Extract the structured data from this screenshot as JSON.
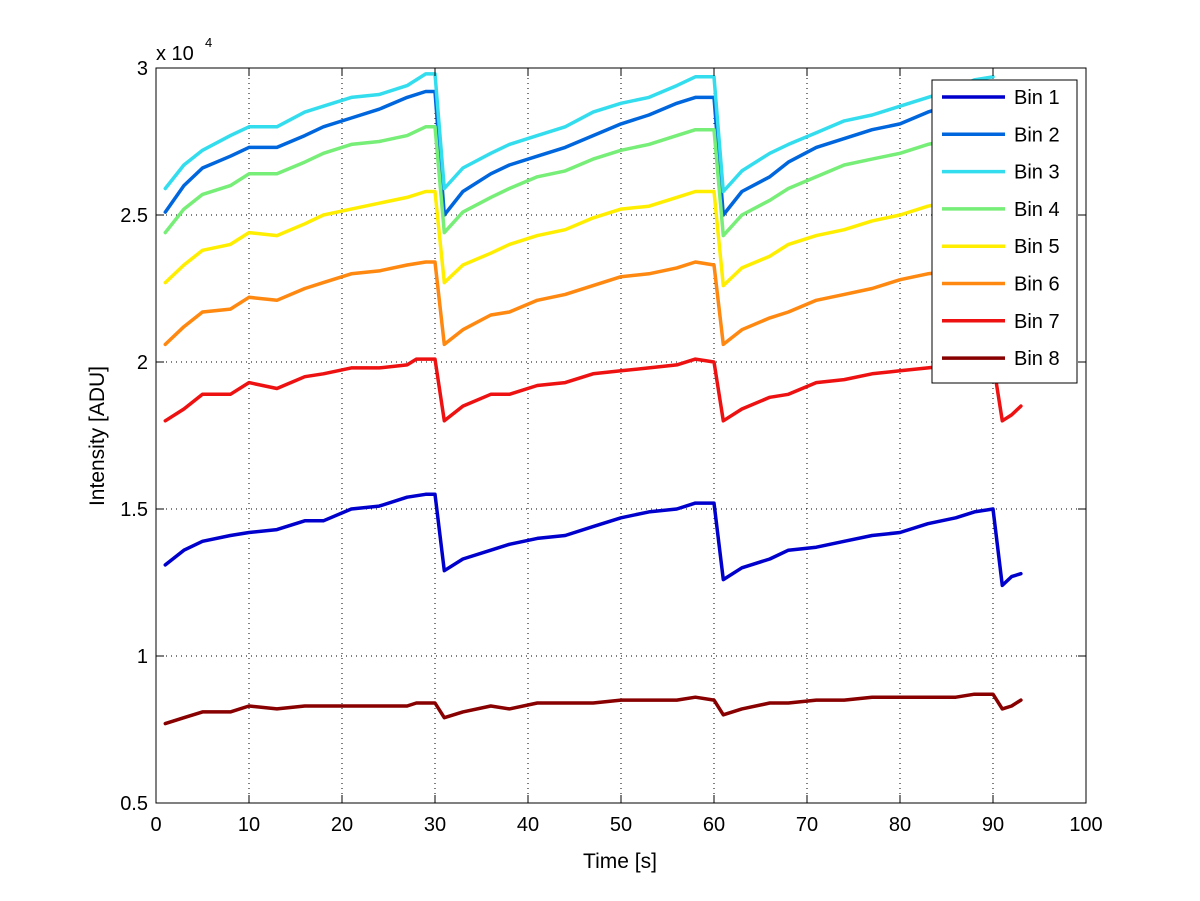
{
  "chart_data": {
    "type": "line",
    "xlabel": "Time [s]",
    "ylabel": "Intensity [ADU]",
    "y_multiplier": {
      "base": "x 10",
      "exponent": "4"
    },
    "xlim": [
      0,
      100
    ],
    "ylim": [
      0.5,
      3
    ],
    "xticks": [
      0,
      10,
      20,
      30,
      40,
      50,
      60,
      70,
      80,
      90,
      100
    ],
    "yticks": [
      0.5,
      1,
      1.5,
      2,
      2.5,
      3
    ],
    "xtick_labels": [
      "0",
      "10",
      "20",
      "30",
      "40",
      "50",
      "60",
      "70",
      "80",
      "90",
      "100"
    ],
    "ytick_labels": [
      "0.5",
      "1",
      "1.5",
      "2",
      "2.5",
      "3"
    ],
    "grid": true,
    "legend_position": "top-right",
    "series": [
      {
        "name": "Bin 1",
        "color": "#0000CC",
        "points": [
          [
            1,
            1.31
          ],
          [
            3,
            1.36
          ],
          [
            5,
            1.39
          ],
          [
            8,
            1.41
          ],
          [
            10,
            1.42
          ],
          [
            13,
            1.43
          ],
          [
            16,
            1.46
          ],
          [
            18,
            1.46
          ],
          [
            21,
            1.5
          ],
          [
            24,
            1.51
          ],
          [
            27,
            1.54
          ],
          [
            29,
            1.55
          ],
          [
            30,
            1.55
          ],
          [
            31,
            1.29
          ],
          [
            33,
            1.33
          ],
          [
            36,
            1.36
          ],
          [
            38,
            1.38
          ],
          [
            41,
            1.4
          ],
          [
            44,
            1.41
          ],
          [
            47,
            1.44
          ],
          [
            50,
            1.47
          ],
          [
            53,
            1.49
          ],
          [
            56,
            1.5
          ],
          [
            58,
            1.52
          ],
          [
            60,
            1.52
          ],
          [
            61,
            1.26
          ],
          [
            63,
            1.3
          ],
          [
            66,
            1.33
          ],
          [
            68,
            1.36
          ],
          [
            71,
            1.37
          ],
          [
            74,
            1.39
          ],
          [
            77,
            1.41
          ],
          [
            80,
            1.42
          ],
          [
            83,
            1.45
          ],
          [
            86,
            1.47
          ],
          [
            88,
            1.49
          ],
          [
            90,
            1.5
          ],
          [
            91,
            1.24
          ],
          [
            92,
            1.27
          ],
          [
            93,
            1.28
          ]
        ]
      },
      {
        "name": "Bin 2",
        "color": "#0066DD",
        "points": [
          [
            1,
            2.51
          ],
          [
            3,
            2.6
          ],
          [
            5,
            2.66
          ],
          [
            8,
            2.7
          ],
          [
            10,
            2.73
          ],
          [
            13,
            2.73
          ],
          [
            16,
            2.77
          ],
          [
            18,
            2.8
          ],
          [
            21,
            2.83
          ],
          [
            24,
            2.86
          ],
          [
            27,
            2.9
          ],
          [
            29,
            2.92
          ],
          [
            30,
            2.92
          ],
          [
            31,
            2.5
          ],
          [
            33,
            2.58
          ],
          [
            36,
            2.64
          ],
          [
            38,
            2.67
          ],
          [
            41,
            2.7
          ],
          [
            44,
            2.73
          ],
          [
            47,
            2.77
          ],
          [
            50,
            2.81
          ],
          [
            53,
            2.84
          ],
          [
            56,
            2.88
          ],
          [
            58,
            2.9
          ],
          [
            60,
            2.9
          ],
          [
            61,
            2.5
          ],
          [
            63,
            2.58
          ],
          [
            66,
            2.63
          ],
          [
            68,
            2.68
          ],
          [
            71,
            2.73
          ],
          [
            74,
            2.76
          ],
          [
            77,
            2.79
          ],
          [
            80,
            2.81
          ],
          [
            83,
            2.85
          ],
          [
            86,
            2.88
          ],
          [
            88,
            2.9
          ],
          [
            90,
            2.92
          ]
        ]
      },
      {
        "name": "Bin 3",
        "color": "#33DDEE",
        "points": [
          [
            1,
            2.59
          ],
          [
            3,
            2.67
          ],
          [
            5,
            2.72
          ],
          [
            8,
            2.77
          ],
          [
            10,
            2.8
          ],
          [
            13,
            2.8
          ],
          [
            16,
            2.85
          ],
          [
            18,
            2.87
          ],
          [
            21,
            2.9
          ],
          [
            24,
            2.91
          ],
          [
            27,
            2.94
          ],
          [
            29,
            2.98
          ],
          [
            30,
            2.98
          ],
          [
            31,
            2.59
          ],
          [
            33,
            2.66
          ],
          [
            36,
            2.71
          ],
          [
            38,
            2.74
          ],
          [
            41,
            2.77
          ],
          [
            44,
            2.8
          ],
          [
            47,
            2.85
          ],
          [
            50,
            2.88
          ],
          [
            53,
            2.9
          ],
          [
            56,
            2.94
          ],
          [
            58,
            2.97
          ],
          [
            60,
            2.97
          ],
          [
            61,
            2.58
          ],
          [
            63,
            2.65
          ],
          [
            66,
            2.71
          ],
          [
            68,
            2.74
          ],
          [
            71,
            2.78
          ],
          [
            74,
            2.82
          ],
          [
            77,
            2.84
          ],
          [
            80,
            2.87
          ],
          [
            83,
            2.9
          ],
          [
            86,
            2.93
          ],
          [
            88,
            2.96
          ],
          [
            90,
            2.97
          ]
        ]
      },
      {
        "name": "Bin 4",
        "color": "#77EE77",
        "points": [
          [
            1,
            2.44
          ],
          [
            3,
            2.52
          ],
          [
            5,
            2.57
          ],
          [
            8,
            2.6
          ],
          [
            10,
            2.64
          ],
          [
            13,
            2.64
          ],
          [
            16,
            2.68
          ],
          [
            18,
            2.71
          ],
          [
            21,
            2.74
          ],
          [
            24,
            2.75
          ],
          [
            27,
            2.77
          ],
          [
            29,
            2.8
          ],
          [
            30,
            2.8
          ],
          [
            31,
            2.44
          ],
          [
            33,
            2.51
          ],
          [
            36,
            2.56
          ],
          [
            38,
            2.59
          ],
          [
            41,
            2.63
          ],
          [
            44,
            2.65
          ],
          [
            47,
            2.69
          ],
          [
            50,
            2.72
          ],
          [
            53,
            2.74
          ],
          [
            56,
            2.77
          ],
          [
            58,
            2.79
          ],
          [
            60,
            2.79
          ],
          [
            61,
            2.43
          ],
          [
            63,
            2.5
          ],
          [
            66,
            2.55
          ],
          [
            68,
            2.59
          ],
          [
            71,
            2.63
          ],
          [
            74,
            2.67
          ],
          [
            77,
            2.69
          ],
          [
            80,
            2.71
          ],
          [
            83,
            2.74
          ],
          [
            86,
            2.76
          ],
          [
            88,
            2.78
          ],
          [
            90,
            2.8
          ]
        ]
      },
      {
        "name": "Bin 5",
        "color": "#FFEE00",
        "points": [
          [
            1,
            2.27
          ],
          [
            3,
            2.33
          ],
          [
            5,
            2.38
          ],
          [
            8,
            2.4
          ],
          [
            10,
            2.44
          ],
          [
            13,
            2.43
          ],
          [
            16,
            2.47
          ],
          [
            18,
            2.5
          ],
          [
            21,
            2.52
          ],
          [
            24,
            2.54
          ],
          [
            27,
            2.56
          ],
          [
            29,
            2.58
          ],
          [
            30,
            2.58
          ],
          [
            31,
            2.27
          ],
          [
            33,
            2.33
          ],
          [
            36,
            2.37
          ],
          [
            38,
            2.4
          ],
          [
            41,
            2.43
          ],
          [
            44,
            2.45
          ],
          [
            47,
            2.49
          ],
          [
            50,
            2.52
          ],
          [
            53,
            2.53
          ],
          [
            56,
            2.56
          ],
          [
            58,
            2.58
          ],
          [
            60,
            2.58
          ],
          [
            61,
            2.26
          ],
          [
            63,
            2.32
          ],
          [
            66,
            2.36
          ],
          [
            68,
            2.4
          ],
          [
            71,
            2.43
          ],
          [
            74,
            2.45
          ],
          [
            77,
            2.48
          ],
          [
            80,
            2.5
          ],
          [
            83,
            2.53
          ],
          [
            86,
            2.55
          ],
          [
            88,
            2.57
          ],
          [
            90,
            2.58
          ]
        ]
      },
      {
        "name": "Bin 6",
        "color": "#FF8811",
        "points": [
          [
            1,
            2.06
          ],
          [
            3,
            2.12
          ],
          [
            5,
            2.17
          ],
          [
            8,
            2.18
          ],
          [
            10,
            2.22
          ],
          [
            13,
            2.21
          ],
          [
            16,
            2.25
          ],
          [
            18,
            2.27
          ],
          [
            21,
            2.3
          ],
          [
            24,
            2.31
          ],
          [
            27,
            2.33
          ],
          [
            29,
            2.34
          ],
          [
            30,
            2.34
          ],
          [
            31,
            2.06
          ],
          [
            33,
            2.11
          ],
          [
            36,
            2.16
          ],
          [
            38,
            2.17
          ],
          [
            41,
            2.21
          ],
          [
            44,
            2.23
          ],
          [
            47,
            2.26
          ],
          [
            50,
            2.29
          ],
          [
            53,
            2.3
          ],
          [
            56,
            2.32
          ],
          [
            58,
            2.34
          ],
          [
            60,
            2.33
          ],
          [
            61,
            2.06
          ],
          [
            63,
            2.11
          ],
          [
            66,
            2.15
          ],
          [
            68,
            2.17
          ],
          [
            71,
            2.21
          ],
          [
            74,
            2.23
          ],
          [
            77,
            2.25
          ],
          [
            80,
            2.28
          ],
          [
            83,
            2.3
          ],
          [
            86,
            2.31
          ],
          [
            88,
            2.33
          ],
          [
            90,
            2.33
          ]
        ]
      },
      {
        "name": "Bin 7",
        "color": "#EE1111",
        "points": [
          [
            1,
            1.8
          ],
          [
            3,
            1.84
          ],
          [
            5,
            1.89
          ],
          [
            8,
            1.89
          ],
          [
            10,
            1.93
          ],
          [
            13,
            1.91
          ],
          [
            16,
            1.95
          ],
          [
            18,
            1.96
          ],
          [
            21,
            1.98
          ],
          [
            24,
            1.98
          ],
          [
            27,
            1.99
          ],
          [
            28,
            2.01
          ],
          [
            30,
            2.01
          ],
          [
            31,
            1.8
          ],
          [
            33,
            1.85
          ],
          [
            36,
            1.89
          ],
          [
            38,
            1.89
          ],
          [
            41,
            1.92
          ],
          [
            44,
            1.93
          ],
          [
            47,
            1.96
          ],
          [
            50,
            1.97
          ],
          [
            53,
            1.98
          ],
          [
            56,
            1.99
          ],
          [
            58,
            2.01
          ],
          [
            60,
            2.0
          ],
          [
            61,
            1.8
          ],
          [
            63,
            1.84
          ],
          [
            66,
            1.88
          ],
          [
            68,
            1.89
          ],
          [
            71,
            1.93
          ],
          [
            74,
            1.94
          ],
          [
            77,
            1.96
          ],
          [
            80,
            1.97
          ],
          [
            83,
            1.98
          ],
          [
            86,
            1.99
          ],
          [
            88,
            2.0
          ],
          [
            90,
            2.0
          ],
          [
            91,
            1.8
          ],
          [
            92,
            1.82
          ],
          [
            93,
            1.85
          ]
        ]
      },
      {
        "name": "Bin 8",
        "color": "#880000",
        "points": [
          [
            1,
            0.77
          ],
          [
            3,
            0.79
          ],
          [
            5,
            0.81
          ],
          [
            8,
            0.81
          ],
          [
            10,
            0.83
          ],
          [
            13,
            0.82
          ],
          [
            16,
            0.83
          ],
          [
            18,
            0.83
          ],
          [
            21,
            0.83
          ],
          [
            24,
            0.83
          ],
          [
            27,
            0.83
          ],
          [
            28,
            0.84
          ],
          [
            30,
            0.84
          ],
          [
            31,
            0.79
          ],
          [
            33,
            0.81
          ],
          [
            36,
            0.83
          ],
          [
            38,
            0.82
          ],
          [
            41,
            0.84
          ],
          [
            44,
            0.84
          ],
          [
            47,
            0.84
          ],
          [
            50,
            0.85
          ],
          [
            53,
            0.85
          ],
          [
            56,
            0.85
          ],
          [
            58,
            0.86
          ],
          [
            60,
            0.85
          ],
          [
            61,
            0.8
          ],
          [
            63,
            0.82
          ],
          [
            66,
            0.84
          ],
          [
            68,
            0.84
          ],
          [
            71,
            0.85
          ],
          [
            74,
            0.85
          ],
          [
            77,
            0.86
          ],
          [
            80,
            0.86
          ],
          [
            83,
            0.86
          ],
          [
            86,
            0.86
          ],
          [
            88,
            0.87
          ],
          [
            90,
            0.87
          ],
          [
            91,
            0.82
          ],
          [
            92,
            0.83
          ],
          [
            93,
            0.85
          ]
        ]
      }
    ]
  }
}
